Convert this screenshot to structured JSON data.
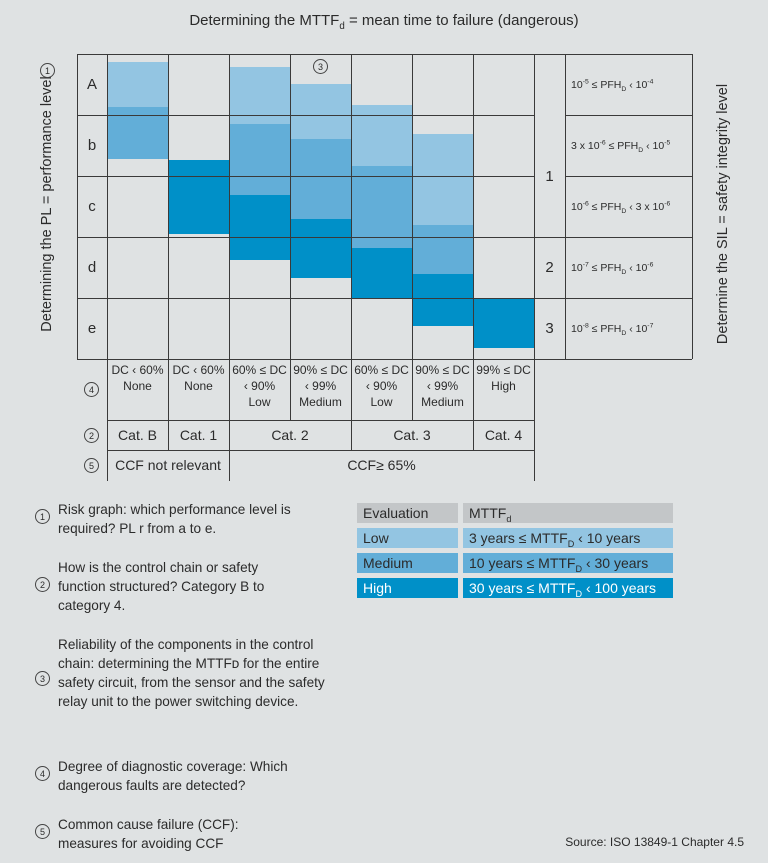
{
  "title": {
    "prefix": "Determining the MTTF",
    "sub": "d",
    "suffix": " = mean time to failure (dangerous)"
  },
  "left_axis": "Determining the PL = performance level",
  "right_axis": "Determine the SIL = safety integrity level",
  "pl_rows": [
    "A",
    "b",
    "c",
    "d",
    "e"
  ],
  "sil_levels": [
    "1",
    "2",
    "3"
  ],
  "pfh_rows": [
    {
      "a": "10",
      "ae": "-5",
      "mid": " ≤  PFH",
      "b": " ‹ 10",
      "be": "-4"
    },
    {
      "a": "3 x 10",
      "ae": "-6",
      "mid": " ≤ PFH",
      "b": " ‹ 10",
      "be": "-5"
    },
    {
      "a": "10",
      "ae": "-6",
      "mid": " ≤ PFH",
      "b": " ‹ 3 x 10",
      "be": "-6"
    },
    {
      "a": "10",
      "ae": "-7",
      "mid": " ≤ PFH",
      "b": " ‹ 10",
      "be": "-6"
    },
    {
      "a": "10",
      "ae": "-8",
      "mid": " ≤ PFH",
      "b": " ‹ 10",
      "be": "-7"
    }
  ],
  "pfh_sub": "D",
  "dc_columns": [
    {
      "l1": "DC ‹ 60%",
      "l2": "None",
      "l3": ""
    },
    {
      "l1": "DC ‹ 60%",
      "l2": "None",
      "l3": ""
    },
    {
      "l1": "60% ≤ DC",
      "l2": "‹ 90%",
      "l3": "Low"
    },
    {
      "l1": "90% ≤ DC",
      "l2": "‹ 99%",
      "l3": "Medium"
    },
    {
      "l1": "60% ≤ DC",
      "l2": "‹ 90%",
      "l3": "Low"
    },
    {
      "l1": "90% ≤ DC",
      "l2": "‹ 99%",
      "l3": "Medium"
    },
    {
      "l1": "99% ≤ DC",
      "l2": "High",
      "l3": ""
    }
  ],
  "categories": [
    "Cat. B",
    "Cat. 1",
    "Cat. 2",
    "Cat. 3",
    "Cat. 4"
  ],
  "ccf": [
    "CCF not relevant",
    "CCF≥ 65%"
  ],
  "markers": [
    "1",
    "2",
    "3",
    "4",
    "5"
  ],
  "notes": [
    "Risk graph: which performance level is required? PL r from a to e.",
    "How is the control chain or safety function structured? Category B to category 4.",
    "Reliability of the components in the control chain: determining the MTTFᴅ for the entire safety circuit, from the sensor and the safety relay unit to the power switching device.",
    "Degree of diagnostic coverage: Which dangerous faults are detected?",
    "Common cause failure (CCF): measures for avoiding CCF"
  ],
  "legend": {
    "header": {
      "label": "Evaluation",
      "value": "MTTF",
      "sub": "d"
    },
    "rows": [
      {
        "label": "Low",
        "a": "3 years ≤ MTTF",
        "sub": "D",
        "b": " ‹ 10 years",
        "color": "#93c5e2"
      },
      {
        "label": "Medium",
        "a": "10 years ≤ MTTF",
        "sub": "D",
        "b": " ‹ 30 years",
        "color": "#62aed8"
      },
      {
        "label": "High",
        "a": "30 years ≤ MTTF",
        "sub": "D",
        "b": " ‹ 100 years",
        "color": "#0090c8"
      }
    ]
  },
  "source": "Source: ISO 13849-1 Chapter 4.5"
}
